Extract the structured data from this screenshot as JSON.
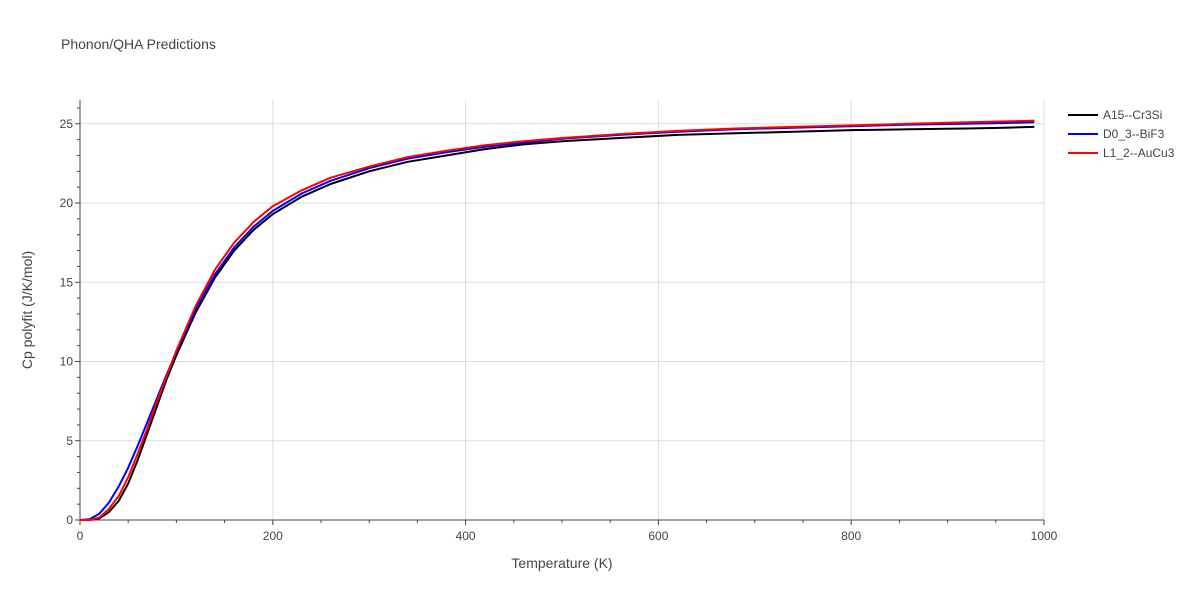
{
  "chart_data": {
    "type": "line",
    "title": "Phonon/QHA Predictions",
    "xlabel": "Temperature (K)",
    "ylabel": "Cp polyfit (J/K/mol)",
    "xlim": [
      0,
      1000
    ],
    "ylim": [
      0,
      26.5
    ],
    "xticks": [
      0,
      200,
      400,
      600,
      800,
      1000
    ],
    "yticks": [
      0,
      5,
      10,
      15,
      20,
      25
    ],
    "grid": true,
    "legend_position": "top-right",
    "series": [
      {
        "name": "A15--Cr3Si",
        "color": "#000000",
        "x": [
          0,
          10,
          20,
          30,
          40,
          50,
          60,
          70,
          80,
          90,
          100,
          120,
          140,
          160,
          180,
          200,
          230,
          260,
          300,
          340,
          380,
          420,
          460,
          500,
          560,
          620,
          680,
          740,
          800,
          860,
          920,
          960,
          990
        ],
        "y": [
          0,
          0,
          0.1,
          0.5,
          1.2,
          2.3,
          3.8,
          5.5,
          7.2,
          8.9,
          10.4,
          13.1,
          15.3,
          17.0,
          18.3,
          19.3,
          20.4,
          21.2,
          22.0,
          22.6,
          23.0,
          23.4,
          23.7,
          23.9,
          24.1,
          24.3,
          24.4,
          24.5,
          24.6,
          24.65,
          24.7,
          24.75,
          24.8
        ]
      },
      {
        "name": "D0_3--BiF3",
        "color": "#0000ff",
        "x": [
          0,
          10,
          20,
          30,
          40,
          50,
          60,
          70,
          80,
          90,
          100,
          120,
          140,
          160,
          180,
          200,
          230,
          260,
          300,
          340,
          380,
          420,
          460,
          500,
          560,
          620,
          680,
          740,
          800,
          860,
          920,
          960,
          990
        ],
        "y": [
          0,
          0.05,
          0.4,
          1.1,
          2.1,
          3.3,
          4.7,
          6.2,
          7.7,
          9.2,
          10.6,
          13.3,
          15.5,
          17.2,
          18.5,
          19.5,
          20.6,
          21.4,
          22.2,
          22.8,
          23.2,
          23.55,
          23.8,
          24.05,
          24.3,
          24.5,
          24.65,
          24.75,
          24.85,
          24.95,
          25.0,
          25.05,
          25.1
        ]
      },
      {
        "name": "L1_2--AuCu3",
        "color": "#ff0000",
        "x": [
          0,
          10,
          20,
          30,
          40,
          50,
          60,
          70,
          80,
          90,
          100,
          120,
          140,
          160,
          180,
          200,
          230,
          260,
          300,
          340,
          380,
          420,
          460,
          500,
          560,
          620,
          680,
          740,
          800,
          860,
          920,
          960,
          990
        ],
        "y": [
          0,
          0,
          0.15,
          0.7,
          1.5,
          2.7,
          4.2,
          5.8,
          7.5,
          9.1,
          10.7,
          13.5,
          15.8,
          17.5,
          18.8,
          19.8,
          20.8,
          21.6,
          22.3,
          22.9,
          23.3,
          23.65,
          23.9,
          24.1,
          24.35,
          24.55,
          24.7,
          24.8,
          24.9,
          25.0,
          25.1,
          25.15,
          25.2
        ]
      }
    ]
  }
}
